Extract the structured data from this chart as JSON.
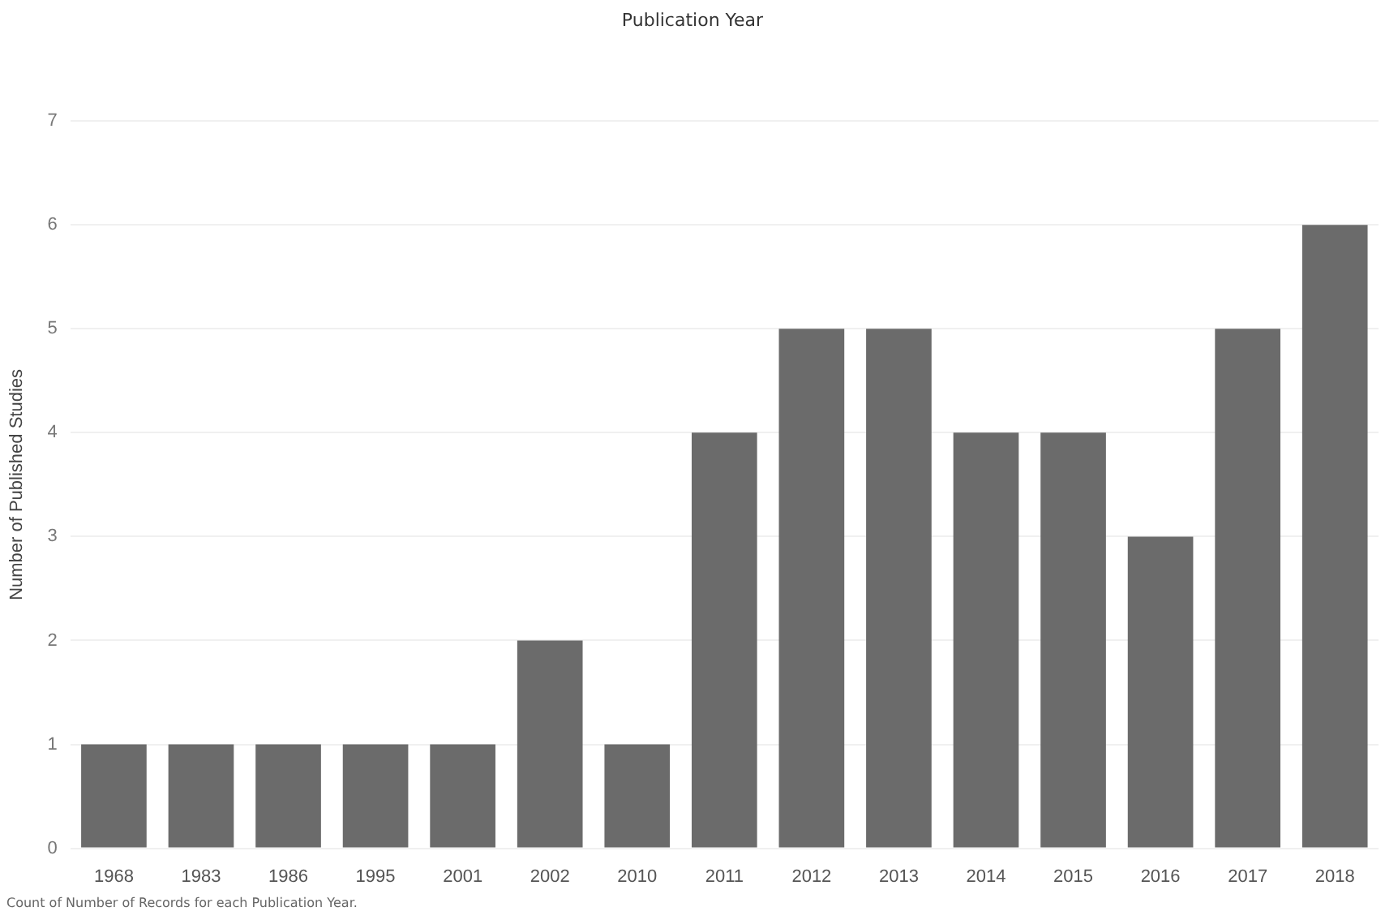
{
  "chart_data": {
    "type": "bar",
    "title": "Publication Year",
    "ylabel": "Number of Published Studies",
    "categories": [
      "1968",
      "1983",
      "1986",
      "1995",
      "2001",
      "2002",
      "2010",
      "2011",
      "2012",
      "2013",
      "2014",
      "2015",
      "2016",
      "2017",
      "2018"
    ],
    "values": [
      1,
      1,
      1,
      1,
      1,
      2,
      1,
      4,
      5,
      5,
      4,
      4,
      3,
      5,
      6
    ],
    "color": "#6b6b6b",
    "ylim": [
      0,
      7
    ],
    "yticks": [
      0,
      1,
      2,
      3,
      4,
      5,
      6,
      7
    ],
    "grid": "y",
    "legend": false,
    "annotations": [
      "Count of Number of Records for each Publication Year."
    ]
  }
}
